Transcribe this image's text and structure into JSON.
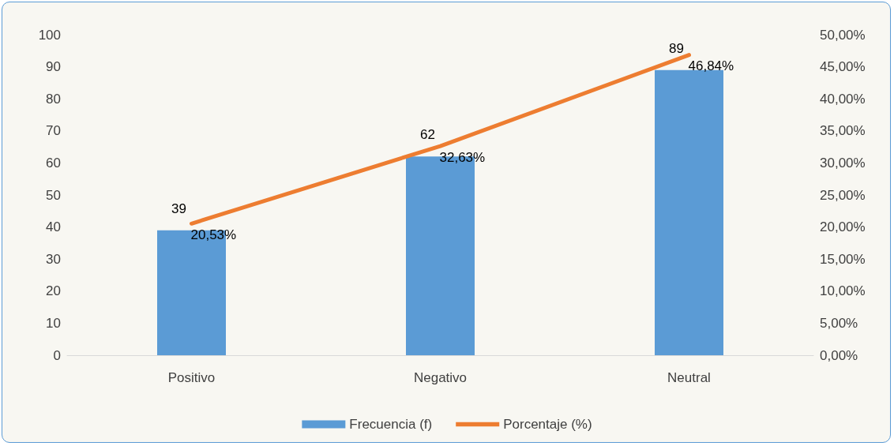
{
  "chart_data": {
    "type": "bar",
    "categories": [
      "Positivo",
      "Negativo",
      "Neutral"
    ],
    "series": [
      {
        "name": "Frecuencia (f)",
        "color": "#5b9bd5",
        "values": [
          39,
          62,
          89
        ],
        "value_labels": [
          "39",
          "62",
          "89"
        ]
      },
      {
        "name": "Porcentaje (%)",
        "type": "line",
        "axis": "y2",
        "color": "#ed7d31",
        "values": [
          20.53,
          32.63,
          46.84
        ],
        "value_labels": [
          "20,53%",
          "32,63%",
          "46,84%"
        ]
      }
    ],
    "ylim": [
      0,
      100
    ],
    "yticks": [
      0,
      10,
      20,
      30,
      40,
      50,
      60,
      70,
      80,
      90,
      100
    ],
    "y2lim": [
      0,
      50
    ],
    "y2ticks": [
      {
        "value": 0,
        "label": "0,00%"
      },
      {
        "value": 5,
        "label": "5,00%"
      },
      {
        "value": 10,
        "label": "10,00%"
      },
      {
        "value": 15,
        "label": "15,00%"
      },
      {
        "value": 20,
        "label": "20,00%"
      },
      {
        "value": 25,
        "label": "25,00%"
      },
      {
        "value": 30,
        "label": "30,00%"
      },
      {
        "value": 35,
        "label": "35,00%"
      },
      {
        "value": 40,
        "label": "40,00%"
      },
      {
        "value": 45,
        "label": "45,00%"
      },
      {
        "value": 50,
        "label": "50,00%"
      }
    ],
    "grid": false,
    "legend": "bottom",
    "marker": "none",
    "line_style": "solid"
  }
}
